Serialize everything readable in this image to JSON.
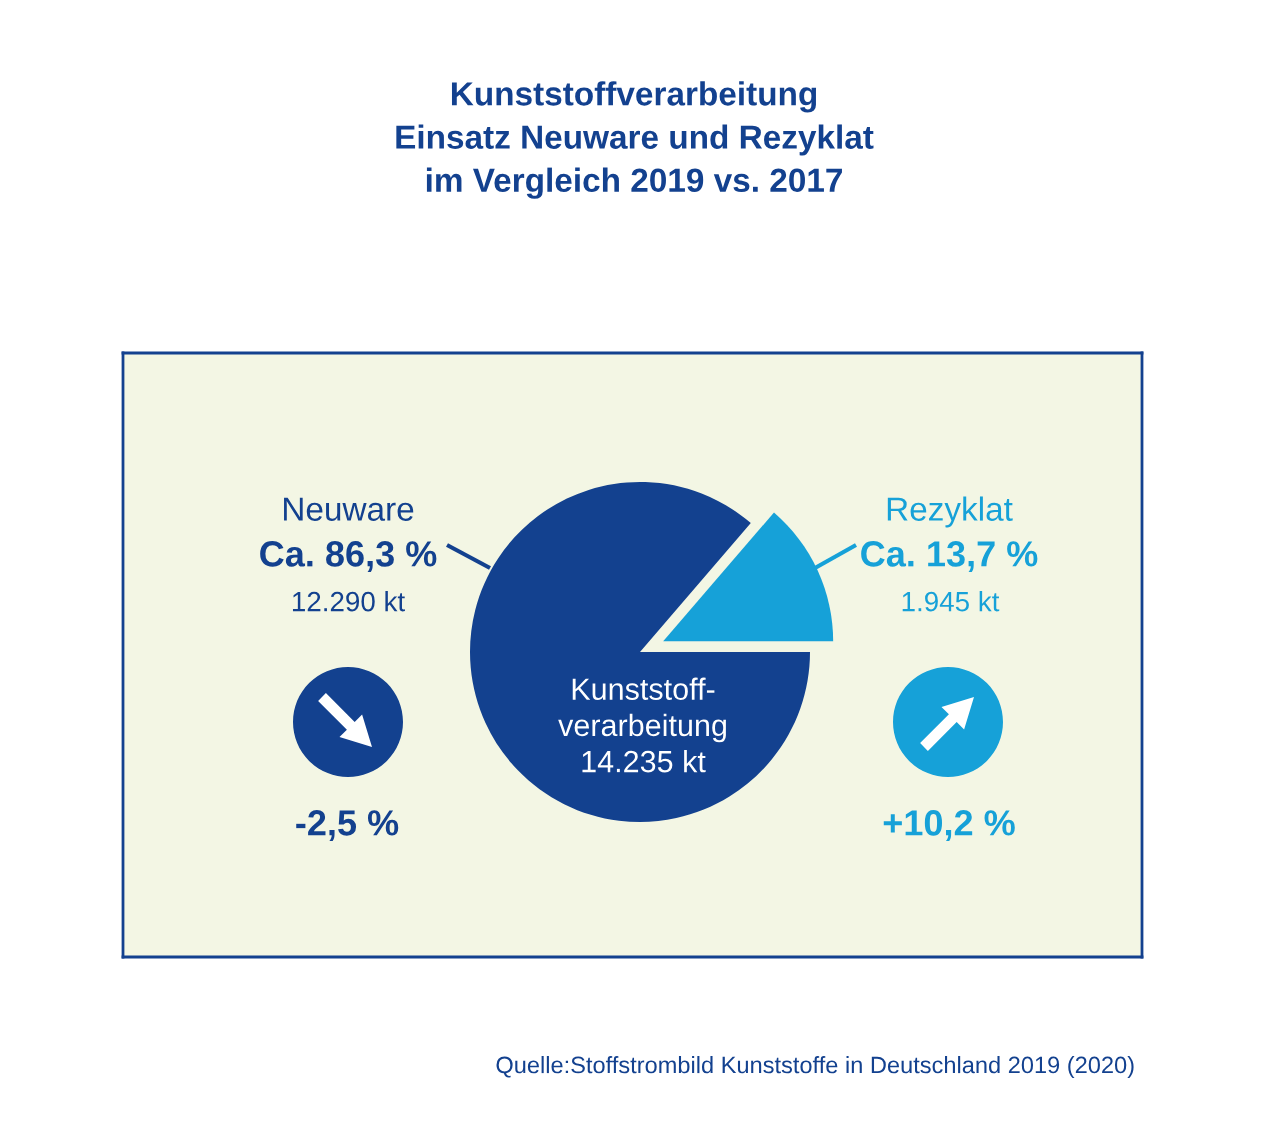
{
  "chart_data": {
    "type": "pie",
    "title": "Kunststoffverarbeitung\nEinsatz Neuware und Rezyklat\nim Vergleich 2019 vs. 2017",
    "categories": [
      "Neuware",
      "Rezyklat"
    ],
    "values": [
      86.3,
      13.7
    ],
    "colors": [
      "#13418f",
      "#16a1d8"
    ],
    "value_labels": [
      "Ca. 86,3 %",
      "Ca. 13,7 %"
    ],
    "annotations": [
      "12.290 kt",
      "1.945 kt",
      "Kunststoff-\nverarbeitung\n14.235 kt",
      "-2,5 %",
      "+10,2 %",
      "Quelle:Stoffstrombild Kunststoffe in Deutschland 2019 (2020)"
    ]
  }
}
